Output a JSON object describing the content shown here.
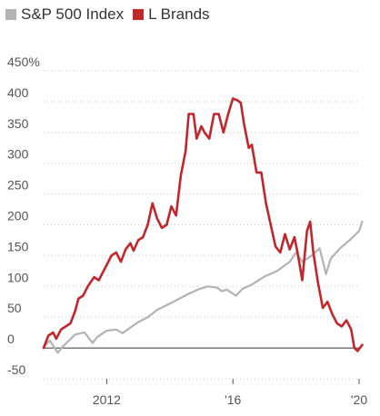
{
  "chart_data": {
    "type": "line",
    "title": "",
    "xlabel": "",
    "ylabel": "",
    "y_unit": "%",
    "ylim": [
      -50,
      450
    ],
    "xlim": [
      2010.0,
      2020.0
    ],
    "y_ticks": [
      {
        "value": 450,
        "label": "450%"
      },
      {
        "value": 400,
        "label": "400"
      },
      {
        "value": 350,
        "label": "350"
      },
      {
        "value": 300,
        "label": "300"
      },
      {
        "value": 250,
        "label": "250"
      },
      {
        "value": 200,
        "label": "200"
      },
      {
        "value": 150,
        "label": "150"
      },
      {
        "value": 100,
        "label": "100"
      },
      {
        "value": 50,
        "label": "50"
      },
      {
        "value": 0,
        "label": "0"
      },
      {
        "value": -50,
        "label": "-50"
      }
    ],
    "x_ticks": [
      {
        "value": 2012,
        "label": "2012"
      },
      {
        "value": 2016,
        "label": "'16"
      },
      {
        "value": 2020,
        "label": "'20"
      }
    ],
    "grid": "horizontal-dotted",
    "zero_line": true,
    "legend_position": "top-left",
    "series": [
      {
        "name": "S&P 500 Index",
        "color": "#b3b3b3",
        "x": [
          2010.0,
          2010.2,
          2010.35,
          2010.45,
          2010.6,
          2010.8,
          2011.0,
          2011.3,
          2011.55,
          2011.7,
          2012.0,
          2012.3,
          2012.5,
          2012.8,
          2013.0,
          2013.3,
          2013.6,
          2014.0,
          2014.3,
          2014.6,
          2014.9,
          2015.2,
          2015.5,
          2015.65,
          2015.8,
          2016.0,
          2016.1,
          2016.3,
          2016.6,
          2017.0,
          2017.4,
          2017.8,
          2018.0,
          2018.2,
          2018.5,
          2018.75,
          2018.95,
          2019.1,
          2019.4,
          2019.7,
          2020.0,
          2020.1
        ],
        "y": [
          2,
          12,
          0,
          -8,
          2,
          12,
          22,
          25,
          8,
          18,
          28,
          30,
          24,
          35,
          42,
          50,
          62,
          72,
          80,
          88,
          95,
          100,
          98,
          92,
          95,
          88,
          85,
          96,
          103,
          116,
          125,
          140,
          155,
          140,
          150,
          162,
          120,
          145,
          162,
          175,
          190,
          205
        ]
      },
      {
        "name": "L Brands",
        "color": "#c0272d",
        "x": [
          2010.0,
          2010.15,
          2010.3,
          2010.4,
          2010.55,
          2010.7,
          2010.85,
          2011.0,
          2011.1,
          2011.25,
          2011.4,
          2011.6,
          2011.75,
          2011.9,
          2012.0,
          2012.15,
          2012.3,
          2012.45,
          2012.6,
          2012.75,
          2012.85,
          2013.0,
          2013.15,
          2013.3,
          2013.45,
          2013.6,
          2013.75,
          2013.9,
          2014.05,
          2014.2,
          2014.35,
          2014.5,
          2014.6,
          2014.75,
          2014.85,
          2015.0,
          2015.1,
          2015.25,
          2015.4,
          2015.55,
          2015.7,
          2015.85,
          2016.0,
          2016.15,
          2016.25,
          2016.35,
          2016.5,
          2016.6,
          2016.75,
          2016.9,
          2017.05,
          2017.2,
          2017.35,
          2017.5,
          2017.65,
          2017.8,
          2017.95,
          2018.05,
          2018.2,
          2018.35,
          2018.45,
          2018.55,
          2018.7,
          2018.85,
          2019.0,
          2019.15,
          2019.3,
          2019.45,
          2019.6,
          2019.75,
          2019.85,
          2019.95,
          2020.1
        ],
        "y": [
          0,
          20,
          25,
          15,
          30,
          35,
          40,
          60,
          80,
          85,
          100,
          115,
          110,
          125,
          135,
          150,
          155,
          140,
          160,
          170,
          158,
          175,
          180,
          200,
          235,
          210,
          195,
          200,
          230,
          215,
          280,
          320,
          380,
          380,
          340,
          360,
          350,
          340,
          380,
          380,
          350,
          380,
          405,
          402,
          398,
          365,
          325,
          330,
          285,
          285,
          235,
          200,
          165,
          155,
          185,
          160,
          180,
          155,
          110,
          190,
          205,
          155,
          105,
          65,
          75,
          55,
          40,
          35,
          45,
          30,
          0,
          -5,
          5
        ]
      }
    ]
  }
}
